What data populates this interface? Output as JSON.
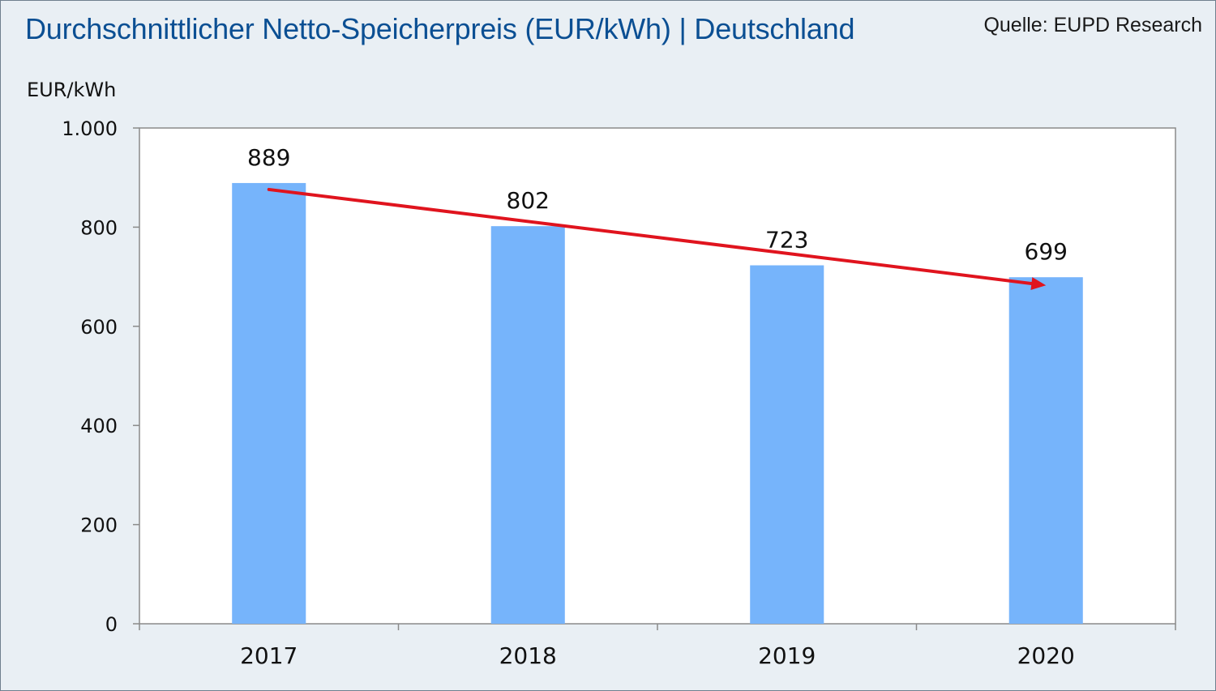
{
  "source": "Quelle: EUPD Research",
  "chart_data": {
    "type": "bar",
    "title": "Durchschnittlicher Netto-Speicherpreis (EUR/kWh) | Deutschland",
    "ylabel": "EUR/kWh",
    "xlabel": "",
    "categories": [
      "2017",
      "2018",
      "2019",
      "2020"
    ],
    "values": [
      889,
      802,
      723,
      699
    ],
    "data_labels": [
      "889",
      "802",
      "723",
      "699"
    ],
    "ylim": [
      0,
      1000
    ],
    "yticks": [
      0,
      200,
      400,
      600,
      800,
      1000
    ],
    "ytick_labels": [
      "0",
      "200",
      "400",
      "600",
      "800",
      "1.000"
    ],
    "grid": false,
    "legend": "none",
    "trend_arrow": {
      "from": "2017",
      "to": "2020",
      "color": "#e0141e"
    },
    "colors": {
      "bar": "#76b4fb",
      "title": "#0b4f93",
      "background": "#e9eff4",
      "plot": "#ffffff",
      "arrow": "#e0141e"
    }
  }
}
